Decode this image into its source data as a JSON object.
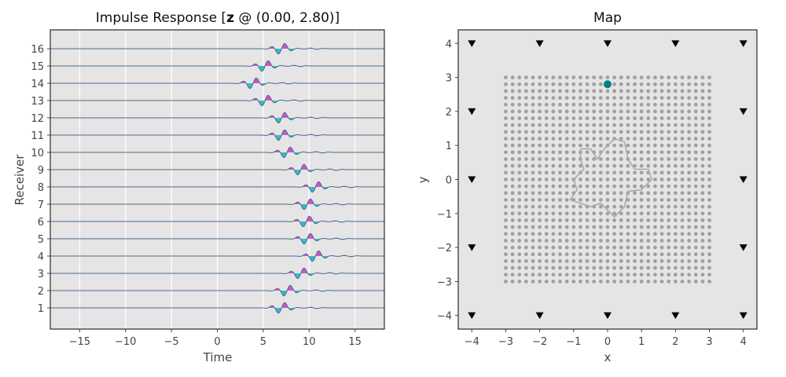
{
  "colors": {
    "panel_bg": "#e5e5e5",
    "grid": "#ffffff",
    "trace": "#4a6b8a",
    "positive_fill": "#cc55cc",
    "negative_fill": "#33bbcc",
    "grid_point": "#a0a0a0",
    "source": "#008080",
    "receiver_marker": "#000000",
    "outline": "#aaaaaa"
  },
  "chart_data": [
    {
      "type": "line",
      "title_prefix": "Impulse Response [",
      "title_bold": "z",
      "title_suffix": " @ (0.00, 2.80)]",
      "xlabel": "Time",
      "ylabel": "Receiver",
      "xlim": [
        -18.2,
        18.2
      ],
      "x_ticks": [
        -15,
        -10,
        -5,
        0,
        5,
        10,
        15
      ],
      "y_ticks": [
        1,
        2,
        3,
        4,
        5,
        6,
        7,
        8,
        9,
        10,
        11,
        12,
        13,
        14,
        15,
        16
      ],
      "grid": true,
      "wavelet_center_times": [
        7.0,
        7.6,
        9.1,
        10.7,
        9.8,
        9.7,
        9.8,
        10.7,
        9.1,
        7.6,
        7.0,
        7.0,
        5.2,
        3.9,
        5.2,
        7.0
      ]
    },
    {
      "type": "scatter",
      "title": "Map",
      "xlabel": "x",
      "ylabel": "y",
      "xlim": [
        -4.4,
        4.4
      ],
      "ylim": [
        -4.4,
        4.4
      ],
      "x_ticks": [
        -4,
        -3,
        -2,
        -1,
        0,
        1,
        2,
        3,
        4
      ],
      "y_ticks": [
        -4,
        -3,
        -2,
        -1,
        0,
        1,
        2,
        3,
        4
      ],
      "grid_points": {
        "x_range": [
          -3,
          3
        ],
        "y_range": [
          -3,
          3
        ],
        "step": 0.2
      },
      "receivers": [
        [
          -4,
          4
        ],
        [
          -2,
          4
        ],
        [
          0,
          4
        ],
        [
          2,
          4
        ],
        [
          4,
          4
        ],
        [
          -4,
          2
        ],
        [
          4,
          2
        ],
        [
          -4,
          0
        ],
        [
          4,
          0
        ],
        [
          -4,
          -2
        ],
        [
          4,
          -2
        ],
        [
          -4,
          -4
        ],
        [
          -2,
          -4
        ],
        [
          0,
          -4
        ],
        [
          2,
          -4
        ],
        [
          4,
          -4
        ]
      ],
      "source": [
        0.0,
        2.8
      ],
      "outline": [
        [
          -0.8,
          0.9
        ],
        [
          -0.5,
          0.9
        ],
        [
          -0.3,
          0.6
        ],
        [
          -0.1,
          0.9
        ],
        [
          0.2,
          1.2
        ],
        [
          0.5,
          1.1
        ],
        [
          0.6,
          0.6
        ],
        [
          0.8,
          0.3
        ],
        [
          1.2,
          0.3
        ],
        [
          1.3,
          0.0
        ],
        [
          1.0,
          -0.3
        ],
        [
          0.6,
          -0.35
        ],
        [
          0.5,
          -0.8
        ],
        [
          0.2,
          -1.1
        ],
        [
          0.0,
          -0.9
        ],
        [
          -0.2,
          -0.7
        ],
        [
          -0.5,
          -0.8
        ],
        [
          -1.1,
          -0.6
        ],
        [
          -0.9,
          -0.3
        ],
        [
          -1.0,
          0.0
        ],
        [
          -0.7,
          0.3
        ],
        [
          -0.8,
          0.6
        ],
        [
          -0.8,
          0.9
        ]
      ]
    }
  ]
}
